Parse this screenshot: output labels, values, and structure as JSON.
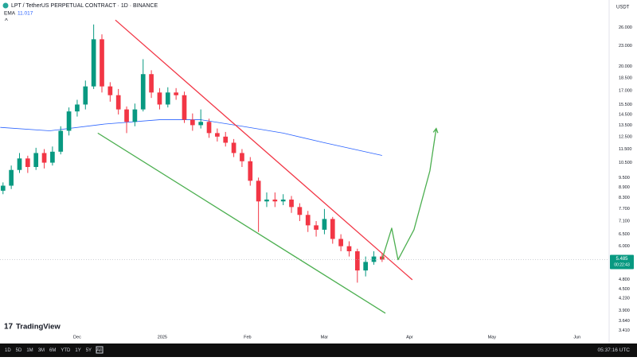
{
  "chart_data": {
    "type": "candlestick",
    "title": "LPT / TetherUS PERPETUAL CONTRACT · 1D · BINANCE",
    "currency": "USDT",
    "indicator": {
      "name": "EMA",
      "value": 11.017,
      "color": "#2962ff",
      "x": [
        -28,
        -10,
        10,
        30,
        45,
        60,
        75,
        90,
        111
      ],
      "values": [
        13.3,
        13.0,
        13.6,
        14.0,
        14.0,
        13.4,
        12.8,
        12.0,
        11.017
      ]
    },
    "up_color": "#089981",
    "down_color": "#f23645",
    "log_scale": true,
    "xlim": [
      -28.1,
      192.2
    ],
    "ylim": [
      3.16,
      29.6
    ],
    "xticks": [
      {
        "value": 0,
        "label": "Dec"
      },
      {
        "value": 31,
        "label": "2025"
      },
      {
        "value": 62,
        "label": "Feb"
      },
      {
        "value": 90,
        "label": "Mar"
      },
      {
        "value": 121,
        "label": "Apr"
      },
      {
        "value": 151,
        "label": "May"
      },
      {
        "value": 182,
        "label": "Jun"
      }
    ],
    "yticks": [
      {
        "value": 26,
        "label": "26.000"
      },
      {
        "value": 23,
        "label": "23.000"
      },
      {
        "value": 20,
        "label": "20.000"
      },
      {
        "value": 18.5,
        "label": "18.500"
      },
      {
        "value": 17,
        "label": "17.000"
      },
      {
        "value": 15.5,
        "label": "15.500"
      },
      {
        "value": 14.5,
        "label": "14.500"
      },
      {
        "value": 13.5,
        "label": "13.500"
      },
      {
        "value": 12.5,
        "label": "12.500"
      },
      {
        "value": 11.5,
        "label": "11.500"
      },
      {
        "value": 10.5,
        "label": "10.500"
      },
      {
        "value": 9.5,
        "label": "9.500"
      },
      {
        "value": 8.9,
        "label": "8.900"
      },
      {
        "value": 8.3,
        "label": "8.300"
      },
      {
        "value": 7.7,
        "label": "7.700"
      },
      {
        "value": 7.1,
        "label": "7.100"
      },
      {
        "value": 6.5,
        "label": "6.500"
      },
      {
        "value": 6,
        "label": "6.000"
      },
      {
        "value": 4.8,
        "label": "4.800"
      },
      {
        "value": 4.5,
        "label": "4.500"
      },
      {
        "value": 4.23,
        "label": "4.230"
      },
      {
        "value": 3.9,
        "label": "3.900"
      },
      {
        "value": 3.64,
        "label": "3.640"
      },
      {
        "value": 3.41,
        "label": "3.410"
      }
    ],
    "candles": [
      [
        -27,
        8.7,
        9.2,
        8.5,
        9.0
      ],
      [
        -24,
        9.0,
        10.3,
        8.8,
        10.0
      ],
      [
        -21,
        10.0,
        11.2,
        9.8,
        10.8
      ],
      [
        -18,
        10.8,
        11.0,
        9.8,
        10.2
      ],
      [
        -15,
        10.2,
        11.6,
        10.0,
        11.2
      ],
      [
        -12,
        11.2,
        11.5,
        10.1,
        10.5
      ],
      [
        -9,
        10.5,
        11.7,
        10.3,
        11.3
      ],
      [
        -6,
        11.3,
        13.4,
        11.1,
        13.0
      ],
      [
        -3,
        13.0,
        15.2,
        12.6,
        14.8
      ],
      [
        0,
        14.8,
        16.0,
        14.3,
        15.5
      ],
      [
        3,
        15.5,
        18.2,
        15.0,
        17.5
      ],
      [
        6,
        17.5,
        26.5,
        17.2,
        24.0
      ],
      [
        9,
        24.0,
        24.8,
        16.8,
        17.5
      ],
      [
        12,
        17.5,
        18.0,
        15.8,
        16.5
      ],
      [
        15,
        16.5,
        17.2,
        14.5,
        15.0
      ],
      [
        18,
        15.0,
        15.3,
        12.8,
        13.8
      ],
      [
        21,
        13.8,
        15.6,
        13.4,
        15.0
      ],
      [
        24,
        15.0,
        21.0,
        14.8,
        19.0
      ],
      [
        27,
        19.0,
        19.5,
        16.2,
        16.8
      ],
      [
        30,
        16.8,
        17.3,
        15.0,
        15.5
      ],
      [
        33,
        15.5,
        17.4,
        15.2,
        16.8
      ],
      [
        36,
        16.8,
        17.3,
        16.0,
        16.5
      ],
      [
        39,
        16.5,
        16.9,
        13.7,
        14.0
      ],
      [
        42,
        14.0,
        14.6,
        13.0,
        13.5
      ],
      [
        45,
        13.5,
        15.0,
        13.2,
        13.8
      ],
      [
        48,
        13.8,
        14.1,
        12.4,
        12.8
      ],
      [
        51,
        12.8,
        13.2,
        12.1,
        12.5
      ],
      [
        54,
        12.5,
        12.9,
        11.7,
        12.0
      ],
      [
        57,
        12.0,
        12.3,
        10.9,
        11.2
      ],
      [
        60,
        11.2,
        11.5,
        10.2,
        10.6
      ],
      [
        63,
        10.6,
        10.9,
        9.0,
        9.3
      ],
      [
        66,
        9.3,
        9.5,
        6.6,
        8.1
      ],
      [
        69,
        8.1,
        8.6,
        7.8,
        8.2
      ],
      [
        72,
        8.2,
        8.6,
        7.8,
        8.1
      ],
      [
        75,
        8.1,
        8.5,
        7.9,
        8.2
      ],
      [
        78,
        8.2,
        8.4,
        7.5,
        7.8
      ],
      [
        81,
        7.8,
        8.0,
        7.1,
        7.4
      ],
      [
        84,
        7.4,
        7.6,
        6.6,
        6.9
      ],
      [
        87,
        6.9,
        7.1,
        6.4,
        6.7
      ],
      [
        90,
        6.7,
        7.7,
        6.5,
        7.2
      ],
      [
        93,
        7.2,
        7.3,
        6.1,
        6.3
      ],
      [
        96,
        6.3,
        6.5,
        5.8,
        6.0
      ],
      [
        99,
        6.0,
        6.2,
        5.6,
        5.8
      ],
      [
        102,
        5.8,
        5.9,
        4.7,
        5.1
      ],
      [
        105,
        5.1,
        5.6,
        4.9,
        5.4
      ],
      [
        108,
        5.4,
        5.8,
        5.3,
        5.6
      ],
      [
        111,
        5.6,
        5.7,
        5.4,
        5.485
      ]
    ],
    "countdown": "00:22:43",
    "trendlines": [
      {
        "color": "#f23645",
        "points": [
          [
            13.9,
            27.3
          ],
          [
            122,
            4.79
          ]
        ]
      },
      {
        "color": "#4caf50",
        "points": [
          [
            7.5,
            12.8
          ],
          [
            112.2,
            3.83
          ]
        ]
      },
      {
        "color": "#4caf50",
        "arrow": true,
        "points": [
          [
            111,
            5.5
          ],
          [
            114.5,
            6.77
          ],
          [
            116.8,
            5.48
          ],
          [
            122.6,
            6.7
          ],
          [
            128.4,
            9.94
          ],
          [
            130.7,
            13.2
          ]
        ]
      }
    ]
  },
  "branding": "TradingView",
  "toolbar": {
    "ranges": [
      "1D",
      "5D",
      "1M",
      "3M",
      "6M",
      "YTD",
      "1Y",
      "5Y",
      "All"
    ],
    "clock": "05:37:16 UTC"
  }
}
